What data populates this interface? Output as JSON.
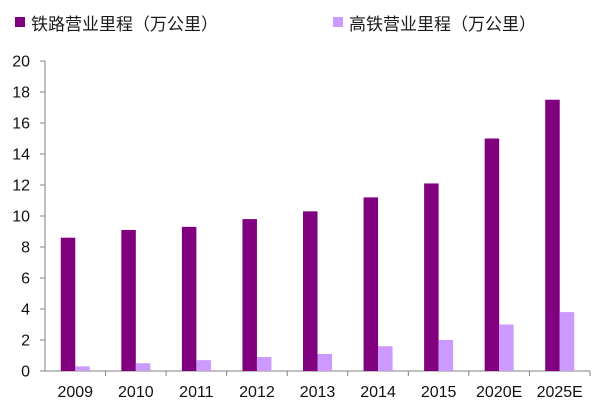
{
  "chart_data": {
    "type": "bar",
    "categories": [
      "2009",
      "2010",
      "2011",
      "2012",
      "2013",
      "2014",
      "2015",
      "2020E",
      "2025E"
    ],
    "series": [
      {
        "name": "铁路营业里程（万公里）",
        "color": "#800080",
        "values": [
          8.6,
          9.1,
          9.3,
          9.8,
          10.3,
          11.2,
          12.1,
          15.0,
          17.5
        ]
      },
      {
        "name": "高铁营业里程（万公里）",
        "color": "#cc99ff",
        "values": [
          0.3,
          0.5,
          0.7,
          0.9,
          1.1,
          1.6,
          2.0,
          3.0,
          3.8
        ]
      }
    ],
    "yticks": [
      "0",
      "2",
      "4",
      "6",
      "8",
      "10",
      "12",
      "14",
      "16",
      "18",
      "20"
    ],
    "ylim": [
      0,
      20
    ],
    "legend_position": "top",
    "grid": false
  }
}
